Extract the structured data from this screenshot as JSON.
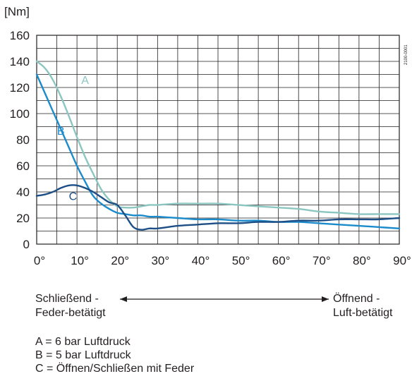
{
  "chart_data": {
    "type": "line",
    "unit_label": "[Nm]",
    "side_code": "2100-0001",
    "x": [
      0,
      2,
      4,
      6,
      8,
      10,
      12,
      14,
      16,
      18,
      20,
      22,
      24,
      26,
      28,
      30,
      35,
      40,
      45,
      50,
      55,
      60,
      65,
      70,
      75,
      80,
      85,
      90
    ],
    "xticks": [
      "0°",
      "10°",
      "20°",
      "30°",
      "40°",
      "50°",
      "60°",
      "70°",
      "80°",
      "90°"
    ],
    "yticks": [
      "0",
      "20",
      "40",
      "60",
      "80",
      "100",
      "120",
      "140",
      "160"
    ],
    "xlim": [
      0,
      90
    ],
    "ylim": [
      0,
      160
    ],
    "grid": true,
    "series": [
      {
        "name": "A",
        "color": "#8cc6c0",
        "values": [
          140,
          135,
          126,
          113,
          98,
          82,
          67,
          54,
          42,
          34,
          29,
          28,
          28,
          29,
          30,
          30,
          31,
          31,
          31,
          30,
          29,
          28,
          27,
          25,
          24,
          23,
          23,
          23
        ]
      },
      {
        "name": "B",
        "color": "#1c8bcb",
        "values": [
          130,
          116,
          102,
          88,
          74,
          60,
          48,
          37,
          31,
          27,
          24,
          23,
          22,
          22,
          21,
          21,
          20,
          19,
          19,
          18,
          18,
          17,
          17,
          16,
          15,
          14,
          13,
          12
        ]
      },
      {
        "name": "C",
        "color": "#1d4f86",
        "values": [
          37,
          38,
          40,
          43,
          45,
          45,
          43,
          40,
          36,
          32,
          30,
          22,
          13,
          11,
          12,
          12,
          14,
          15,
          16,
          16,
          17,
          17,
          18,
          18,
          19,
          19,
          19,
          20
        ]
      }
    ]
  },
  "direction": {
    "left_line1": "Schließend -",
    "left_line2": "Feder-betätigt",
    "right_line1": "Öffnend -",
    "right_line2": "Luft-betätigt"
  },
  "legend_notes": [
    "A = 6 bar Luftdruck",
    "B = 5 bar Luftdruck",
    "C = Öffnen/Schließen mit Feder"
  ]
}
